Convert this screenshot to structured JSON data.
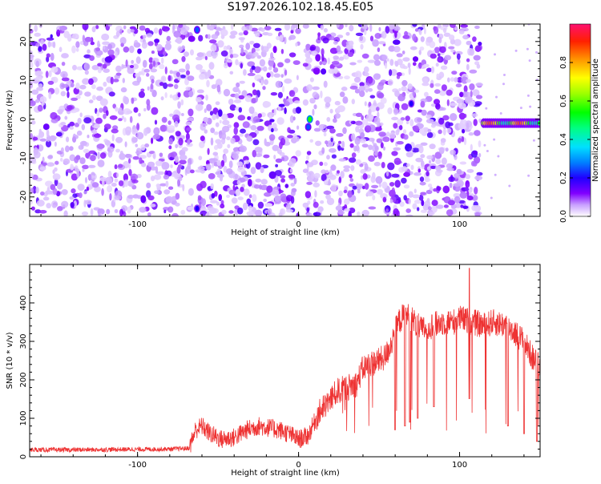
{
  "title": "S197.2026.102.18.45.E05",
  "chart_data": [
    {
      "type": "heatmap",
      "title": "S197.2026.102.18.45.E05",
      "xlabel": "Height of straight line (km)",
      "ylabel": "Frequency (Hz)",
      "xlim": [
        -167,
        150
      ],
      "ylim": [
        -25,
        24.5
      ],
      "xticks": [
        -100,
        0,
        100
      ],
      "xtick_labels": [
        "-100",
        "0",
        "100"
      ],
      "yticks": [
        -20,
        -10,
        0,
        10,
        20
      ],
      "ytick_labels": [
        "-20",
        "-10",
        "0",
        "10",
        "20"
      ],
      "colorbar": {
        "label": "Normalized spectral amplitude",
        "range": [
          0,
          1
        ],
        "ticks": [
          0.0,
          0.2,
          0.4,
          0.6,
          0.8
        ],
        "tick_labels": [
          "0.0",
          "0.2",
          "0.4",
          "0.6",
          "0.8"
        ]
      },
      "gaps_km": [
        [
          -66,
          -62
        ],
        [
          0,
          4
        ],
        [
          113,
          120
        ]
      ],
      "data_extent_km": [
        -167,
        114
      ],
      "features": [
        {
          "x": 7,
          "y": 0,
          "amplitude": 0.55
        },
        {
          "x": 6,
          "y": -2,
          "amplitude": 0.25
        },
        {
          "x": 70,
          "y": 4,
          "amplitude": 0.2
        },
        {
          "x": -63,
          "y": 23,
          "amplitude": 0.25
        },
        {
          "x": -63,
          "y": -23,
          "amplitude": 0.2
        }
      ],
      "band_0hz": {
        "x_range": [
          115,
          150
        ],
        "y": -1,
        "amplitude_range": [
          0.4,
          0.85
        ]
      }
    },
    {
      "type": "line",
      "xlabel": "Height of straight line (km)",
      "ylabel": "SNR (10 * v/v)",
      "xlim": [
        -167,
        150
      ],
      "ylim": [
        0,
        500
      ],
      "xticks": [
        -100,
        0,
        100
      ],
      "xtick_labels": [
        "-100",
        "0",
        "100"
      ],
      "yticks": [
        0,
        100,
        200,
        300,
        400
      ],
      "ytick_labels": [
        "0",
        "100",
        "200",
        "300",
        "400"
      ],
      "color": "#ee3333",
      "series": [
        {
          "name": "SNR",
          "x": [
            -167,
            -140,
            -110,
            -80,
            -68,
            -64,
            -60,
            -55,
            -48,
            -40,
            -32,
            -25,
            -18,
            -12,
            -6,
            0,
            6,
            12,
            18,
            24,
            30,
            36,
            40,
            44,
            50,
            54,
            58,
            62,
            66,
            70,
            76,
            82,
            90,
            96,
            100,
            104,
            108,
            112,
            116,
            120,
            126,
            130,
            135,
            140,
            145,
            150
          ],
          "y": [
            18,
            18,
            19,
            20,
            22,
            70,
            80,
            60,
            45,
            50,
            70,
            80,
            75,
            70,
            60,
            45,
            55,
            110,
            140,
            170,
            180,
            190,
            230,
            240,
            250,
            260,
            300,
            350,
            370,
            360,
            330,
            340,
            350,
            350,
            360,
            355,
            350,
            345,
            340,
            350,
            345,
            340,
            320,
            300,
            260,
            230
          ],
          "dips": [
            {
              "x": 60,
              "y": 70
            },
            {
              "x": 66,
              "y": 80
            },
            {
              "x": 69,
              "y": 90
            },
            {
              "x": 74,
              "y": 100
            },
            {
              "x": 84,
              "y": 130
            },
            {
              "x": 106,
              "y": 150
            },
            {
              "x": 130,
              "y": 80
            },
            {
              "x": 140,
              "y": 60
            },
            {
              "x": 148,
              "y": 40
            }
          ],
          "spikes": [
            {
              "x": 106,
              "y": 490
            }
          ]
        }
      ]
    }
  ]
}
